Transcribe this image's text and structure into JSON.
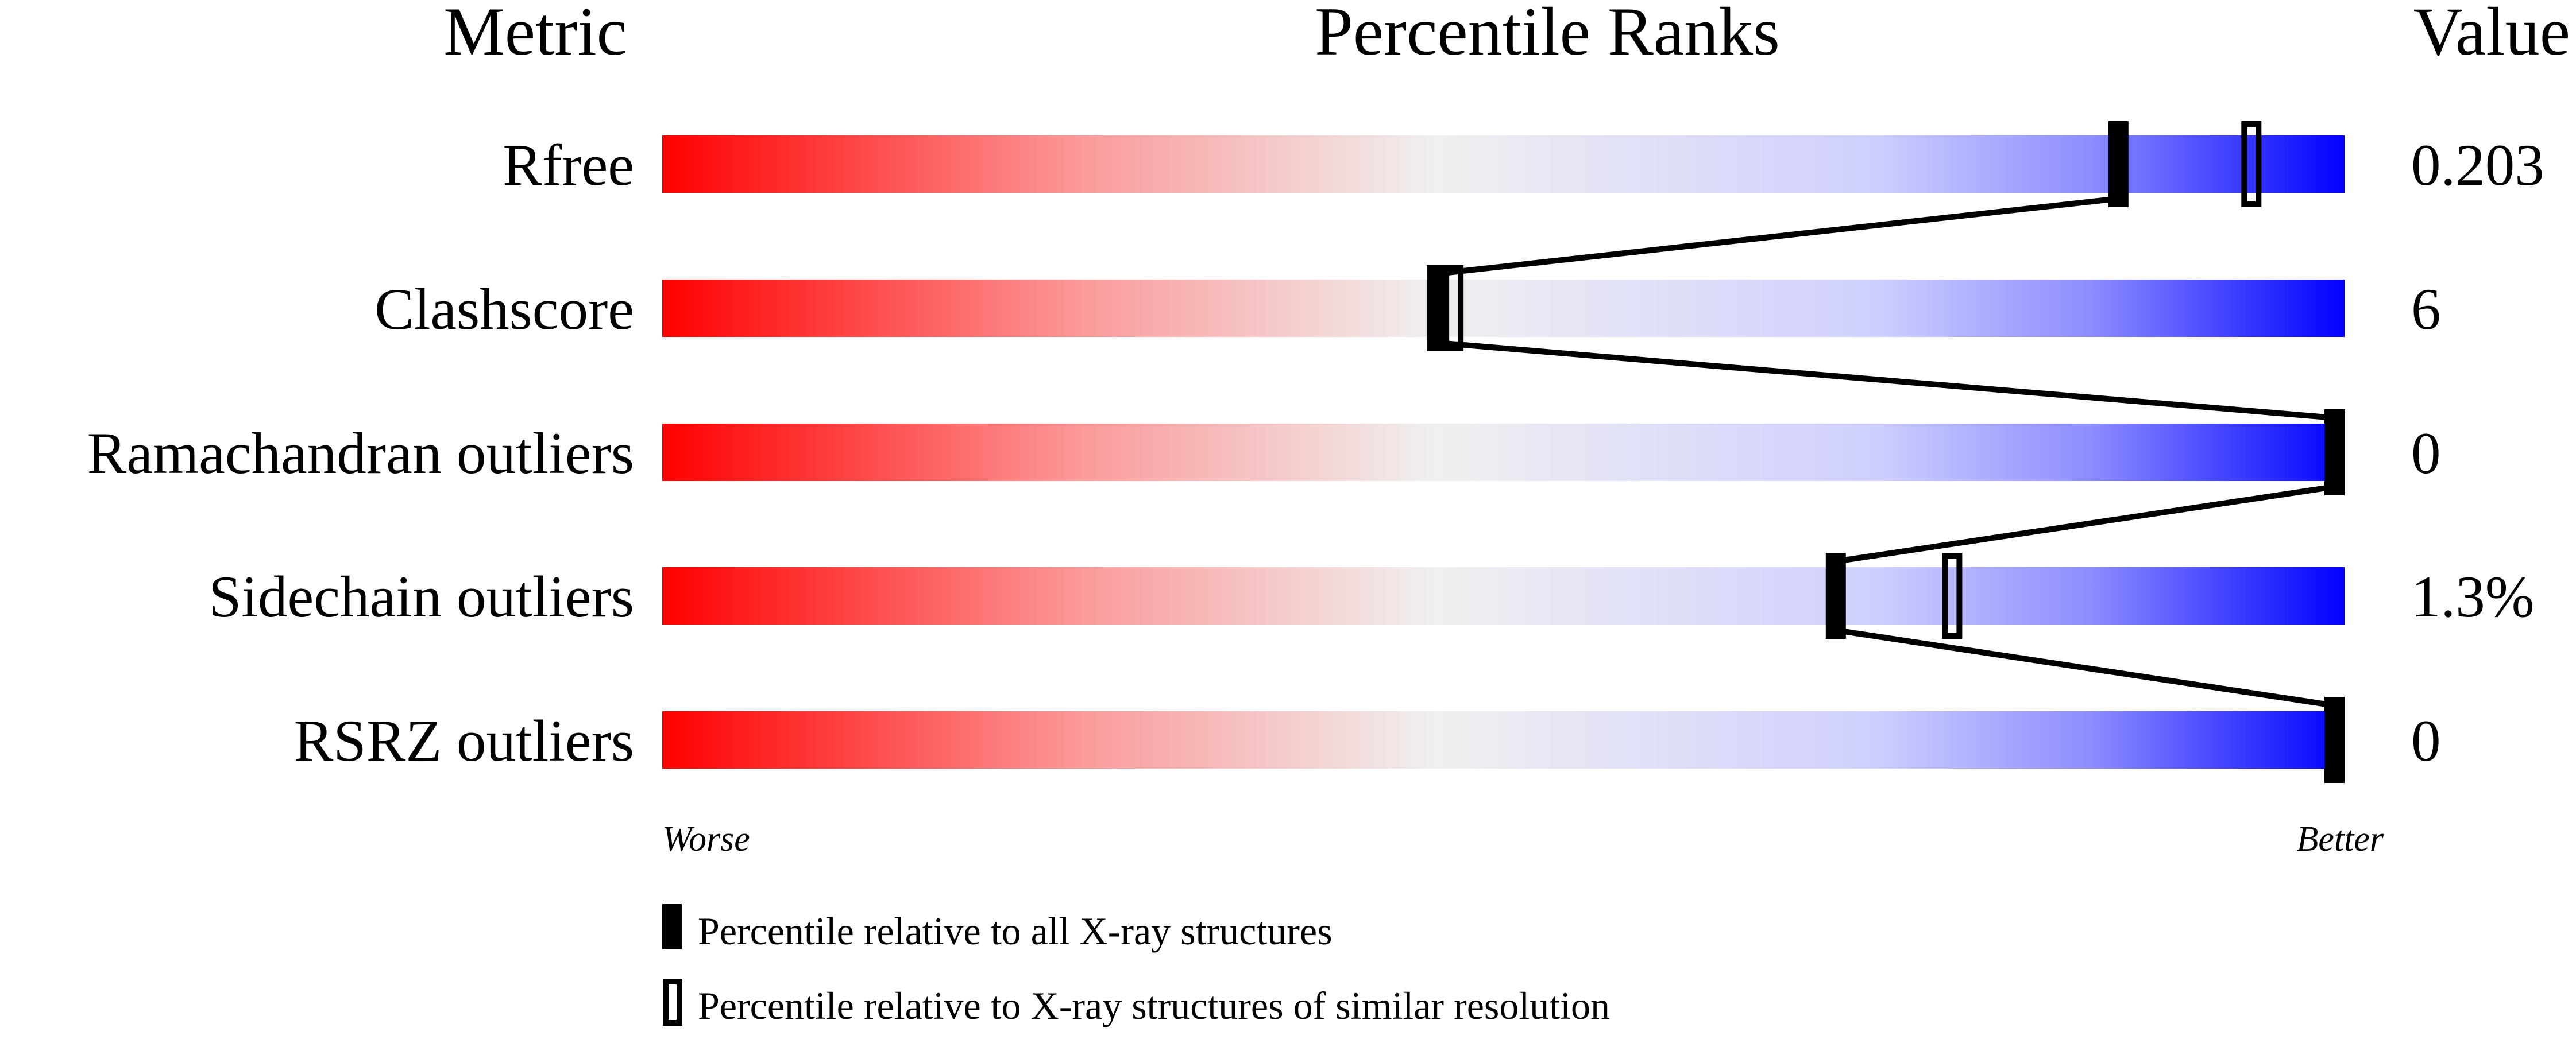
{
  "chart_data": {
    "type": "percentile-bar",
    "headers": {
      "metric": "Metric",
      "ranks": "Percentile Ranks",
      "value": "Value"
    },
    "xlim": [
      0,
      100
    ],
    "rows": [
      {
        "metric": "Rfree",
        "value": "0.203",
        "percentile_all": 87,
        "percentile_similar": 95
      },
      {
        "metric": "Clashscore",
        "value": "6",
        "percentile_all": 46,
        "percentile_similar": 47
      },
      {
        "metric": "Ramachandran outliers",
        "value": "0",
        "percentile_all": 100,
        "percentile_similar": 100
      },
      {
        "metric": "Sidechain outliers",
        "value": "1.3%",
        "percentile_all": 70,
        "percentile_similar": 77
      },
      {
        "metric": "RSRZ outliers",
        "value": "0",
        "percentile_all": 100,
        "percentile_similar": 100
      }
    ],
    "axis_labels": {
      "left": "Worse",
      "right": "Better"
    },
    "legend": [
      {
        "marker": "filled",
        "label": "Percentile relative to all X-ray structures"
      },
      {
        "marker": "open",
        "label": "Percentile relative to X-ray structures of similar resolution"
      }
    ],
    "colors": {
      "worse": "#ff0000",
      "middle": "#f0f0f0",
      "better": "#0000ff"
    }
  }
}
